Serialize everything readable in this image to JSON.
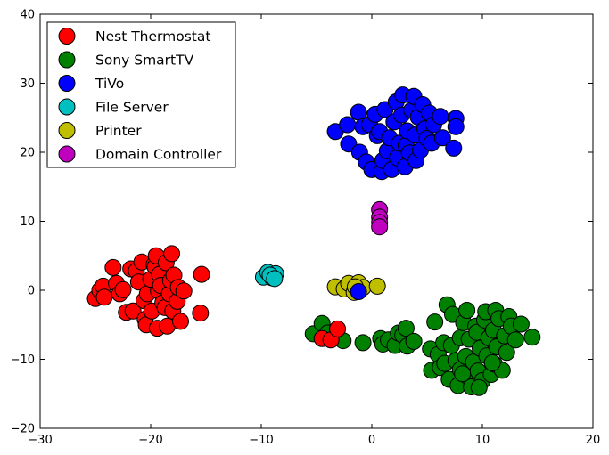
{
  "chart_data": {
    "type": "scatter",
    "title": "",
    "xlabel": "",
    "ylabel": "",
    "xlim": [
      -30,
      20
    ],
    "ylim": [
      -20,
      40
    ],
    "x_ticks": [
      -30,
      -20,
      -10,
      0,
      10,
      20
    ],
    "y_ticks": [
      -20,
      -10,
      0,
      10,
      20,
      30,
      40
    ],
    "x_tick_labels": [
      "−30",
      "−20",
      "−10",
      "0",
      "10",
      "20"
    ],
    "y_tick_labels": [
      "−20",
      "−10",
      "0",
      "10",
      "20",
      "30",
      "40"
    ],
    "grid": false,
    "legend_position": "upper-left",
    "series": [
      {
        "name": "Nest Thermostat",
        "color": "#ff0000",
        "points": [
          [
            -25,
            -1.2
          ],
          [
            -24.6,
            0
          ],
          [
            -24.3,
            0.6
          ],
          [
            -24.2,
            -1
          ],
          [
            -23.4,
            3.3
          ],
          [
            -23.1,
            1
          ],
          [
            -22.8,
            -0.5
          ],
          [
            -22.5,
            0.1
          ],
          [
            -22.2,
            -3.2
          ],
          [
            -21.8,
            3.1
          ],
          [
            -21.6,
            -3
          ],
          [
            -21.3,
            2.8
          ],
          [
            -21.1,
            1.2
          ],
          [
            -20.8,
            4.1
          ],
          [
            -20.6,
            -1.5
          ],
          [
            -20.5,
            -4.2
          ],
          [
            -20.4,
            -5
          ],
          [
            -20.3,
            -0.5
          ],
          [
            -20,
            1.6
          ],
          [
            -19.9,
            -3
          ],
          [
            -19.7,
            3.7
          ],
          [
            -19.6,
            3.4
          ],
          [
            -19.5,
            5
          ],
          [
            -19.4,
            -5.5
          ],
          [
            -19.3,
            -0.1
          ],
          [
            -19.2,
            2.3
          ],
          [
            -19.1,
            0.7
          ],
          [
            -18.9,
            -1.8
          ],
          [
            -18.7,
            -2.5
          ],
          [
            -18.6,
            4
          ],
          [
            -18.5,
            -5.2
          ],
          [
            -18.3,
            -0.5
          ],
          [
            -18.2,
            1.4
          ],
          [
            -18.1,
            5.3
          ],
          [
            -18,
            -3
          ],
          [
            -17.9,
            2.2
          ],
          [
            -17.6,
            -1.6
          ],
          [
            -17.5,
            0.4
          ],
          [
            -17.3,
            -4.5
          ],
          [
            -17,
            -0.1
          ],
          [
            -15.5,
            -3.3
          ],
          [
            -15.4,
            2.3
          ]
        ]
      },
      {
        "name": "Sony SmartTV",
        "color": "#008000",
        "points": [
          [
            -5.3,
            -6.3
          ],
          [
            -4.5,
            -4.8
          ],
          [
            -4,
            -6.2
          ],
          [
            -2.6,
            -7.3
          ],
          [
            -0.8,
            -7.6
          ],
          [
            0.8,
            -7
          ],
          [
            1,
            -7.8
          ],
          [
            1.5,
            -7.2
          ],
          [
            2.1,
            -8
          ],
          [
            2.4,
            -6.2
          ],
          [
            2.8,
            -6.5
          ],
          [
            3.1,
            -5.5
          ],
          [
            3.2,
            -8.1
          ],
          [
            3.8,
            -7.4
          ],
          [
            5.3,
            -8.5
          ],
          [
            5.4,
            -11.6
          ],
          [
            5.7,
            -4.6
          ],
          [
            6,
            -9.3
          ],
          [
            6.2,
            -11.2
          ],
          [
            6.5,
            -7.6
          ],
          [
            6.6,
            -10.6
          ],
          [
            6.8,
            -2.1
          ],
          [
            7,
            -12.9
          ],
          [
            7.2,
            -8
          ],
          [
            7.3,
            -3.5
          ],
          [
            7.6,
            -10.2
          ],
          [
            7.8,
            -13.8
          ],
          [
            8,
            -6.9
          ],
          [
            8,
            -11.5
          ],
          [
            8.3,
            -4.7
          ],
          [
            8.5,
            -9.6
          ],
          [
            8.6,
            -2.9
          ],
          [
            8.7,
            -12.5
          ],
          [
            8.8,
            -7.1
          ],
          [
            9,
            -14
          ],
          [
            9.2,
            -10.4
          ],
          [
            9.4,
            -5.2
          ],
          [
            9.5,
            -6.1
          ],
          [
            9.6,
            -11.7
          ],
          [
            9.8,
            -8.4
          ],
          [
            10,
            -13.1
          ],
          [
            10.2,
            -4.3
          ],
          [
            10.3,
            -3.1
          ],
          [
            10.4,
            -9.5
          ],
          [
            10.6,
            -6.9
          ],
          [
            10.8,
            -12.2
          ],
          [
            11,
            -5.8
          ],
          [
            11.1,
            -10.7
          ],
          [
            11.2,
            -2.9
          ],
          [
            11.3,
            -8.2
          ],
          [
            11.5,
            -4.1
          ],
          [
            11.8,
            -11.6
          ],
          [
            12,
            -6.6
          ],
          [
            12.2,
            -9
          ],
          [
            12.4,
            -3.8
          ],
          [
            12.6,
            -5.2
          ],
          [
            13,
            -7.2
          ],
          [
            13.5,
            -4.9
          ],
          [
            14.5,
            -6.8
          ],
          [
            9.7,
            -14.1
          ],
          [
            8.2,
            -12.1
          ],
          [
            10.9,
            -10.5
          ]
        ]
      },
      {
        "name": "TiVo",
        "color": "#0000ff",
        "points": [
          [
            -3.3,
            23
          ],
          [
            -2.2,
            24
          ],
          [
            -2.1,
            21.2
          ],
          [
            -1.2,
            25.8
          ],
          [
            -1.1,
            20
          ],
          [
            -0.8,
            23.7
          ],
          [
            -0.5,
            18.6
          ],
          [
            -0.2,
            24
          ],
          [
            0,
            17.5
          ],
          [
            0.3,
            25.5
          ],
          [
            0.5,
            22.4
          ],
          [
            0.7,
            23
          ],
          [
            0.9,
            17.2
          ],
          [
            1,
            18.8
          ],
          [
            1.2,
            26.2
          ],
          [
            1.4,
            20.2
          ],
          [
            1.6,
            22.1
          ],
          [
            1.8,
            17.5
          ],
          [
            2,
            24.4
          ],
          [
            2.2,
            27.3
          ],
          [
            2.3,
            19.2
          ],
          [
            2.5,
            21.3
          ],
          [
            2.7,
            25.4
          ],
          [
            2.8,
            28.3
          ],
          [
            3,
            17.9
          ],
          [
            3.1,
            21
          ],
          [
            3.2,
            23.1
          ],
          [
            3.4,
            19.9
          ],
          [
            3.6,
            26.1
          ],
          [
            3.8,
            28.1
          ],
          [
            3.9,
            22.5
          ],
          [
            4,
            18.8
          ],
          [
            4.2,
            25.1
          ],
          [
            4.4,
            20.3
          ],
          [
            4.6,
            26.9
          ],
          [
            4.8,
            23.4
          ],
          [
            5,
            22
          ],
          [
            5.2,
            25.7
          ],
          [
            5.4,
            21.3
          ],
          [
            5.6,
            24
          ],
          [
            6.2,
            25.2
          ],
          [
            6.4,
            22.1
          ],
          [
            7.4,
            20.6
          ],
          [
            7.6,
            24.9
          ],
          [
            7.6,
            23.7
          ]
        ]
      },
      {
        "name": "File Server",
        "color": "#00bfbf",
        "points": [
          [
            -9.8,
            1.9
          ],
          [
            -9.4,
            2.6
          ],
          [
            -9,
            1.8
          ],
          [
            -8.7,
            2.4
          ],
          [
            -9.2,
            2.2
          ],
          [
            -8.8,
            1.7
          ]
        ]
      },
      {
        "name": "Printer",
        "color": "#bfbf00",
        "points": [
          [
            -3.3,
            0.5
          ],
          [
            -2.5,
            0.2
          ],
          [
            -2.1,
            1
          ],
          [
            -1.6,
            -0.3
          ],
          [
            -1.2,
            1.1
          ],
          [
            -0.8,
            0.4
          ],
          [
            0.5,
            0.6
          ],
          [
            -1.5,
            0.5
          ]
        ]
      },
      {
        "name": "Domain Controller",
        "color": "#bf00bf",
        "points": [
          [
            0.7,
            11.7
          ],
          [
            0.7,
            10.6
          ],
          [
            0.7,
            9.8
          ],
          [
            0.7,
            9.2
          ]
        ]
      }
    ],
    "extra_markers": [
      {
        "series": "Nest Thermostat",
        "color": "#ff0000",
        "points": [
          [
            -4.5,
            -7
          ],
          [
            -3.7,
            -7.2
          ],
          [
            -3.1,
            -5.6
          ]
        ]
      },
      {
        "series": "TiVo",
        "color": "#0000ff",
        "points": [
          [
            -1.2,
            -0.2
          ]
        ]
      }
    ]
  }
}
